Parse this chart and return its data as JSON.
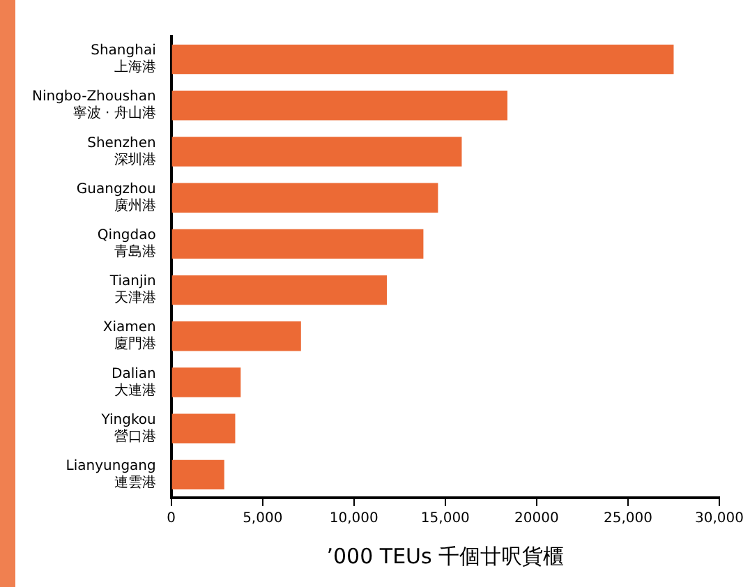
{
  "chart_data": {
    "type": "bar",
    "orientation": "horizontal",
    "xlabel": "’000 TEUs 千個廿呎貨櫃",
    "categories": [
      "Shanghai\n上海港",
      "Ningbo-Zhoushan\n寧波 · 舟山港",
      "Shenzhen\n深圳港",
      "Guangzhou\n廣州港",
      "Qingdao\n青島港",
      "Tianjin\n天津港",
      "Xiamen\n廈門港",
      "Dalian\n大連港",
      "Yingkou\n營口港",
      "Lianyungang\n連雲港"
    ],
    "values": [
      27500,
      18400,
      15900,
      14600,
      13800,
      11800,
      7100,
      3800,
      3500,
      2900
    ],
    "color": "#ec6a35",
    "xlim": [
      0,
      30000
    ],
    "xticks": [
      0,
      {
        "value": 5000,
        "label": "5,000"
      },
      {
        "value": 10000,
        "label": "10,000"
      },
      {
        "value": 15000,
        "label": "15,000"
      },
      20000,
      {
        "value": 25000,
        "label": "25,000"
      },
      {
        "value": 30000,
        "label": "30,000"
      }
    ],
    "grid": false,
    "legend": false
  }
}
